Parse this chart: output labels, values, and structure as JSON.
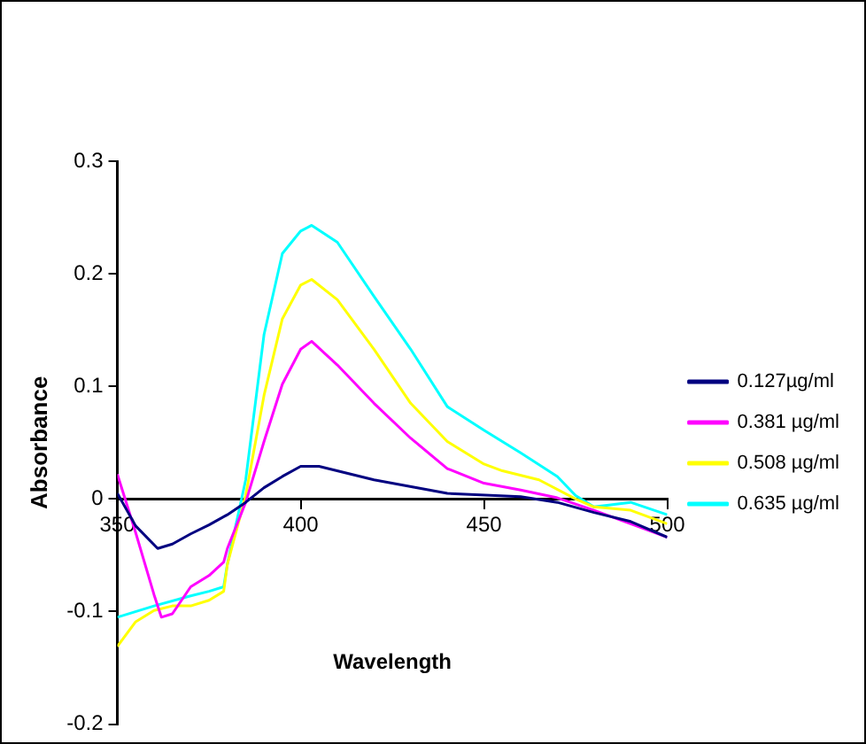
{
  "chart_data": {
    "type": "line",
    "xlabel": "Wavelength",
    "ylabel": "Absorbance",
    "xlim": [
      350,
      500
    ],
    "xticks": [
      350,
      400,
      450,
      500
    ],
    "ylim": [
      -0.2,
      0.3
    ],
    "yticks": [
      -0.2,
      -0.1,
      0,
      0.1,
      0.2,
      0.3
    ],
    "grid": false,
    "legend": "right",
    "marker": "none",
    "line_style": "solid",
    "series": [
      {
        "name": "0.127µg/ml",
        "color": "#000080",
        "x": [
          350,
          355,
          361,
          365,
          370,
          375,
          380,
          385,
          390,
          395,
          400,
          405,
          420,
          440,
          460,
          470,
          480,
          490,
          500
        ],
        "values": [
          0.005,
          -0.024,
          -0.044,
          -0.04,
          -0.031,
          -0.023,
          -0.014,
          -0.003,
          0.01,
          0.02,
          0.029,
          0.029,
          0.017,
          0.005,
          0.002,
          -0.003,
          -0.012,
          -0.02,
          -0.034
        ]
      },
      {
        "name": "0.381 µg/ml",
        "color": "#ff00ff",
        "x": [
          350,
          355,
          360,
          362,
          365,
          370,
          375,
          379,
          380,
          385,
          390,
          395,
          400,
          403,
          410,
          420,
          430,
          440,
          450,
          460,
          470,
          480,
          490,
          500
        ],
        "values": [
          0.022,
          -0.03,
          -0.085,
          -0.105,
          -0.102,
          -0.078,
          -0.068,
          -0.056,
          -0.044,
          -0.003,
          0.051,
          0.102,
          0.133,
          0.14,
          0.119,
          0.085,
          0.054,
          0.027,
          0.014,
          0.008,
          0.001,
          -0.01,
          -0.022,
          -0.034
        ]
      },
      {
        "name": "0.508 µg/ml",
        "color": "#ffff00",
        "x": [
          350,
          355,
          360,
          365,
          370,
          375,
          379,
          380,
          385,
          390,
          395,
          400,
          403,
          410,
          420,
          430,
          440,
          450,
          455,
          465,
          475,
          480,
          490,
          500
        ],
        "values": [
          -0.131,
          -0.109,
          -0.099,
          -0.095,
          -0.095,
          -0.09,
          -0.082,
          -0.058,
          0.003,
          0.092,
          0.16,
          0.19,
          0.195,
          0.177,
          0.133,
          0.085,
          0.051,
          0.031,
          0.025,
          0.017,
          0,
          -0.007,
          -0.01,
          -0.022
        ]
      },
      {
        "name": "0.635 µg/ml",
        "color": "#00ffff",
        "x": [
          350,
          360,
          370,
          375,
          379,
          380,
          385,
          390,
          395,
          400,
          403,
          410,
          420,
          430,
          440,
          450,
          460,
          470,
          475,
          480,
          490,
          500
        ],
        "values": [
          -0.105,
          -0.095,
          -0.086,
          -0.082,
          -0.078,
          -0.058,
          0.017,
          0.146,
          0.218,
          0.238,
          0.243,
          0.228,
          0.18,
          0.133,
          0.082,
          0.061,
          0.041,
          0.02,
          0.003,
          -0.007,
          -0.003,
          -0.014
        ]
      }
    ]
  }
}
